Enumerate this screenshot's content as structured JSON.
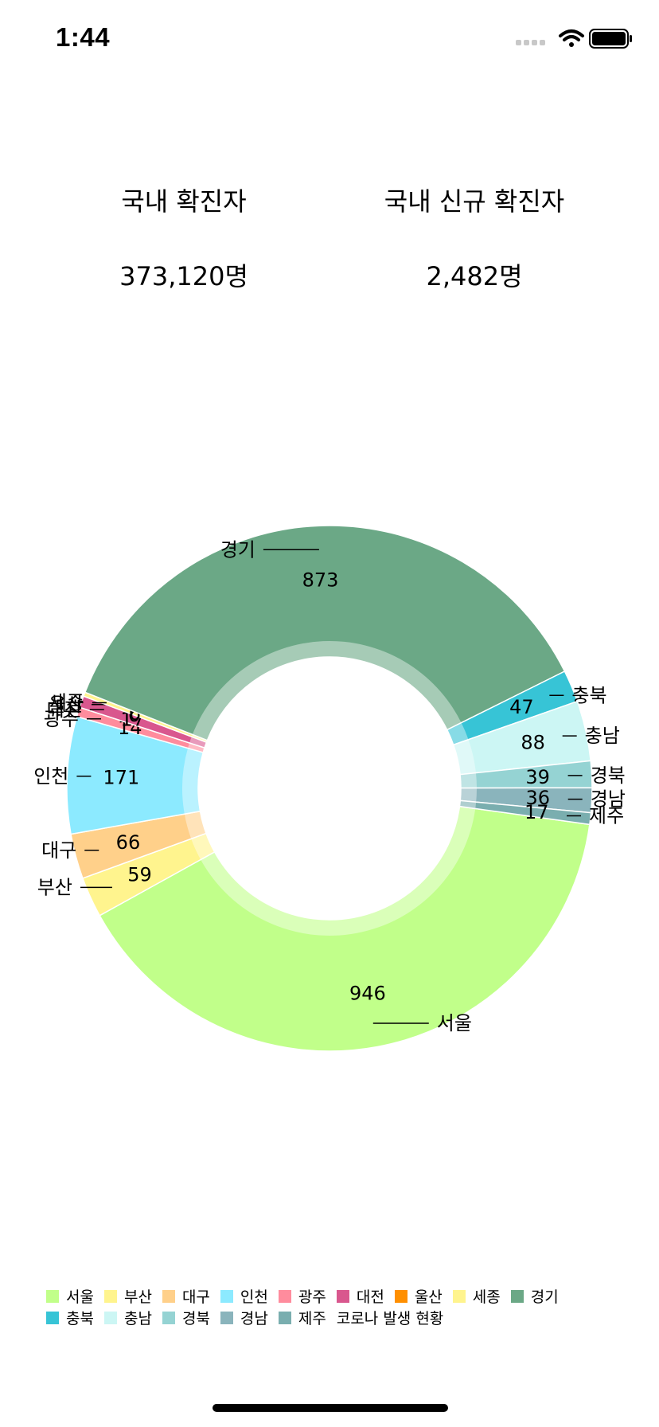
{
  "status_bar": {
    "time": "1:44"
  },
  "stats": {
    "total": {
      "label": "국내 확진자",
      "value": "373,120명"
    },
    "new": {
      "label": "국내 신규 확진자",
      "value": "2,482명"
    }
  },
  "chart_data": {
    "type": "pie",
    "subtype": "donut",
    "title": "",
    "legend_title": "코로나 발생 현황",
    "legend_position": "bottom-left",
    "categories": [
      "서울",
      "부산",
      "대구",
      "인천",
      "광주",
      "대전",
      "울산",
      "세종",
      "경기",
      "충북",
      "충남",
      "경북",
      "경남",
      "제주"
    ],
    "values": [
      946,
      59,
      66,
      171,
      14,
      17,
      0,
      6,
      873,
      47,
      88,
      39,
      36,
      17
    ],
    "value_labels": [
      "946",
      "59",
      "66",
      "171",
      "14",
      "17",
      "0",
      "6",
      "873",
      "47",
      "88",
      "39",
      "36",
      "17"
    ],
    "colors": [
      "#C1FF8A",
      "#FFF48E",
      "#FFD08A",
      "#8CEAFF",
      "#FF8C9D",
      "#D9578E",
      "#FF8F00",
      "#FFF48E",
      "#6BA886",
      "#37C4D6",
      "#CCF6F4",
      "#95D3D3",
      "#8AB4BC",
      "#7AAEAF"
    ]
  }
}
